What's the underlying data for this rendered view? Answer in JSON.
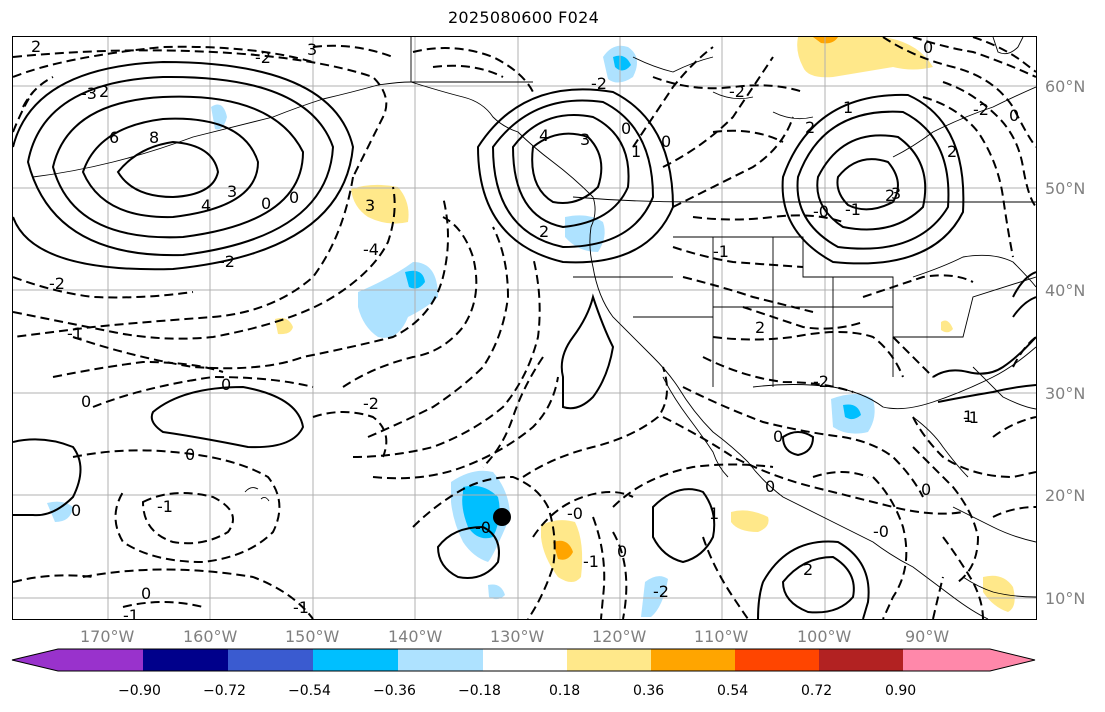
{
  "title": "2025080600 F024",
  "lat_labels": [
    "60°N",
    "50°N",
    "40°N",
    "30°N",
    "20°N",
    "10°N"
  ],
  "lon_labels": [
    "170°W",
    "160°W",
    "150°W",
    "140°W",
    "130°W",
    "120°W",
    "110°W",
    "100°W",
    "90°W"
  ],
  "colorbar": {
    "ticks": [
      "−0.90",
      "−0.72",
      "−0.54",
      "−0.36",
      "−0.18",
      "0.18",
      "0.36",
      "0.54",
      "0.72",
      "0.90"
    ],
    "colors": [
      "#9932cc",
      "#00008b",
      "#3a5bd0",
      "#00bfff",
      "#aee2ff",
      "#ffffff",
      "#ffe88a",
      "#ffa500",
      "#ff4500",
      "#b22222",
      "#ff88aa"
    ]
  },
  "contour_labels": [
    "2",
    "-2",
    "3",
    "-3",
    "2",
    "6",
    "8",
    "4",
    "3",
    "0",
    "0",
    "-2",
    "-2",
    "-1",
    "3",
    "-4",
    "0",
    "-2",
    "0",
    "0",
    "-1",
    "-1",
    "0",
    "-1",
    "0",
    "-0",
    "4",
    "3",
    "0",
    "0",
    "2",
    "-2",
    "1",
    "-2",
    "-1",
    "2",
    "-2",
    "1",
    "2",
    "2",
    "3",
    "-0",
    "-1",
    "2",
    "0",
    "-2",
    "0",
    "-1",
    "0",
    "-0",
    "2",
    "-2",
    "1",
    "0",
    "-1",
    "-0",
    "0",
    "0",
    "1"
  ],
  "marker": "storm-center"
}
